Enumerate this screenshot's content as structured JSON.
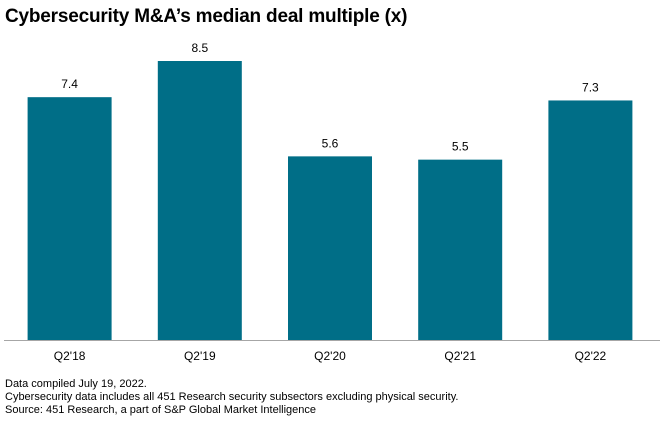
{
  "title": "Cybersecurity M&A’s median deal multiple (x)",
  "chart_data": {
    "type": "bar",
    "title": "Cybersecurity M&A’s median deal multiple (x)",
    "categories": [
      "Q2'18",
      "Q2'19",
      "Q2'20",
      "Q2'21",
      "Q2'22"
    ],
    "values": [
      7.4,
      8.5,
      5.6,
      5.5,
      7.3
    ],
    "data_labels": [
      "7.4",
      "8.5",
      "5.6",
      "5.5",
      "7.3"
    ],
    "xlabel": "",
    "ylabel": "",
    "ylim": [
      0,
      8.5
    ],
    "grid": false,
    "bar_color": "#006e87",
    "axis_color": "#a6a6a6"
  },
  "notes": [
    "Data compiled July 19, 2022.",
    "Cybersecurity data includes all 451 Research security subsectors excluding physical security.",
    "Source: 451 Research, a part of S&P Global Market Intelligence"
  ]
}
